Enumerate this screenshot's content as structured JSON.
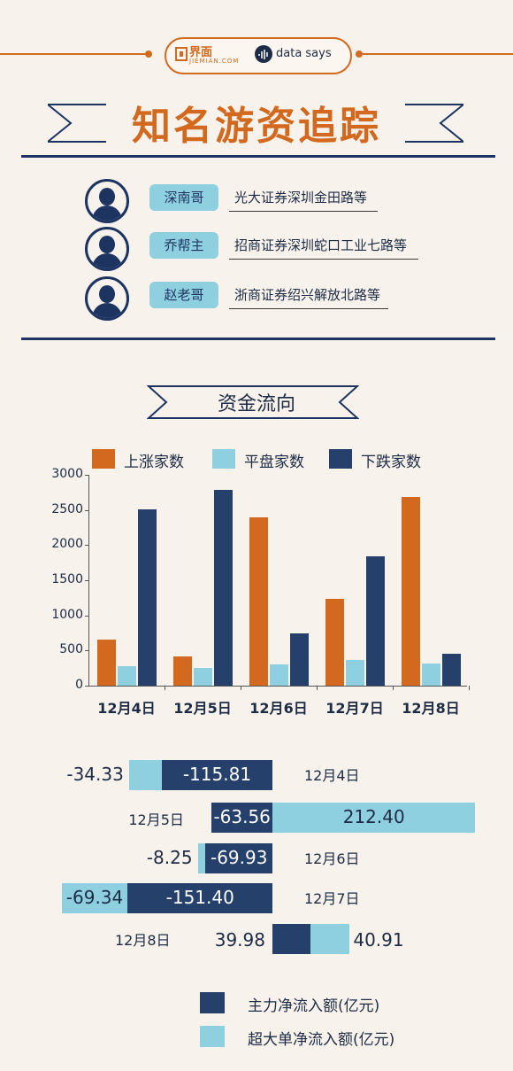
{
  "header": {
    "logo_jiemian": "界面",
    "logo_jiemian_sub": "JIEMIAN.COM",
    "logo_datasays": "data says",
    "title": "知名游资追踪"
  },
  "traders": [
    {
      "name": "深南哥",
      "desc": "光大证券深圳金田路等"
    },
    {
      "name": "乔帮主",
      "desc": "招商证券深圳蛇口工业七路等"
    },
    {
      "name": "赵老哥",
      "desc": "浙商证券绍兴解放北路等"
    }
  ],
  "section_title": "资金流向",
  "colors": {
    "orange": "#d2691e",
    "light_blue": "#8ecfe0",
    "navy": "#25406b"
  },
  "chart_data": [
    {
      "type": "bar",
      "categories": [
        "12月4日",
        "12月5日",
        "12月6日",
        "12月7日",
        "12月8日"
      ],
      "series": [
        {
          "name": "上涨家数",
          "values": [
            650,
            410,
            2400,
            1230,
            2690
          ]
        },
        {
          "name": "平盘家数",
          "values": [
            280,
            250,
            300,
            370,
            310
          ]
        },
        {
          "name": "下跌家数",
          "values": [
            2510,
            2780,
            740,
            1840,
            450
          ]
        }
      ],
      "ylim": [
        0,
        3000
      ],
      "yticks": [
        0,
        500,
        1000,
        1500,
        2000,
        2500,
        3000
      ],
      "legend": "top"
    },
    {
      "type": "bar",
      "orientation": "horizontal",
      "categories": [
        "12月4日",
        "12月5日",
        "12月6日",
        "12月7日",
        "12月8日"
      ],
      "series": [
        {
          "name": "主力净流入额(亿元)",
          "values": [
            -115.81,
            -63.56,
            -69.93,
            -151.4,
            39.98
          ]
        },
        {
          "name": "超大单净流入额(亿元)",
          "values": [
            -34.33,
            212.4,
            -8.25,
            -69.34,
            40.91
          ]
        }
      ],
      "value_labels": {
        "main": [
          "-115.81",
          "-63.56",
          "-69.93",
          "-151.40",
          "39.98"
        ],
        "super": [
          "-34.33",
          "212.40",
          "-8.25",
          "-69.34",
          "40.91"
        ]
      },
      "legend": "bottom"
    }
  ]
}
